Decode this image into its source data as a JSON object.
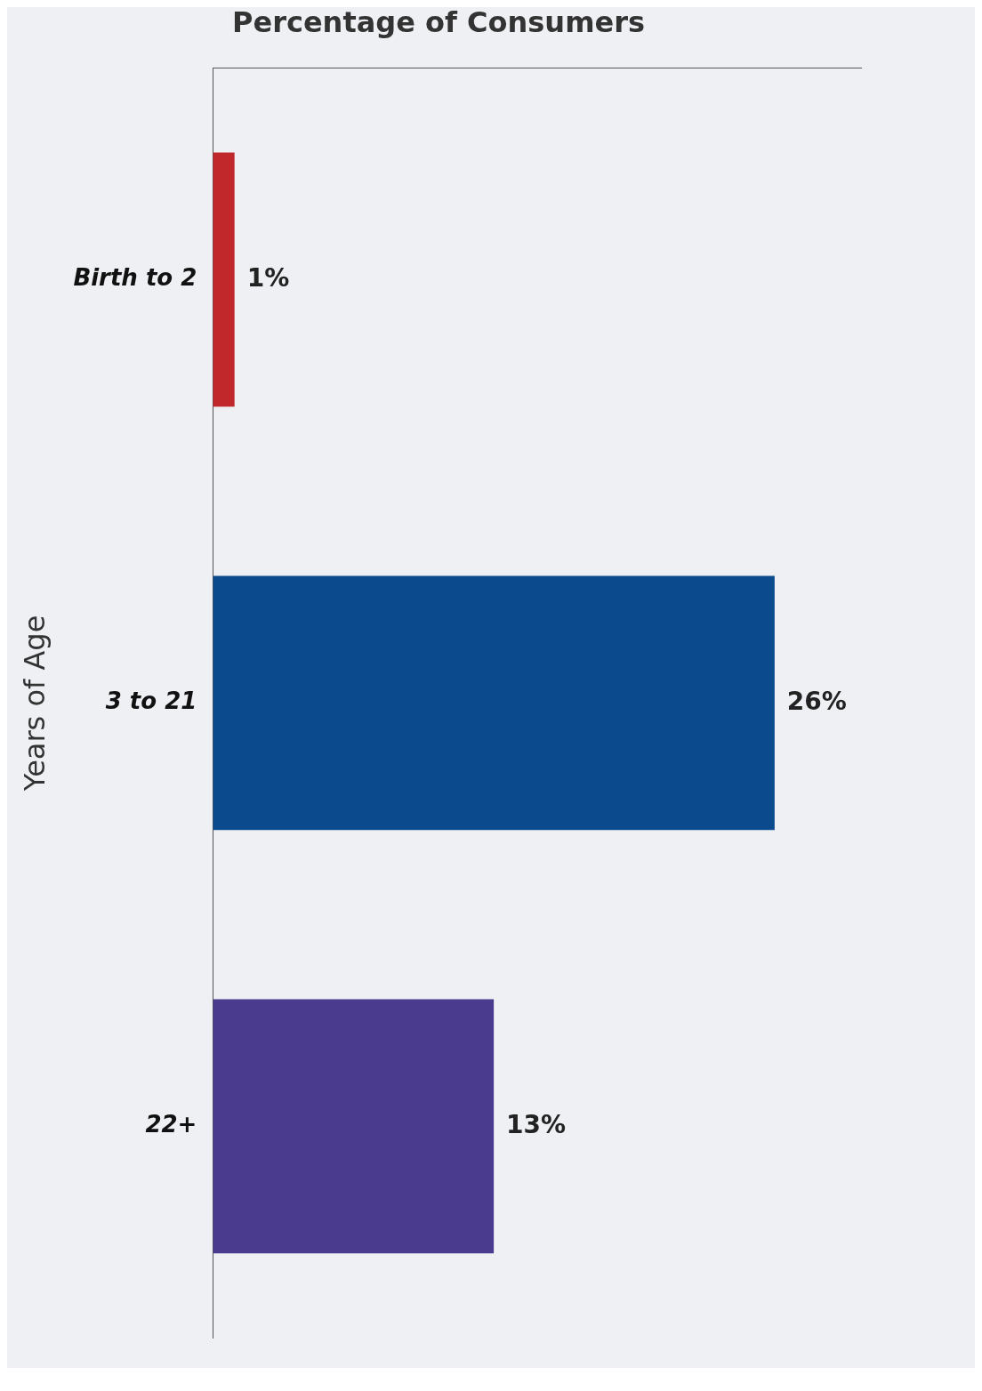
{
  "chart_data": {
    "type": "bar",
    "orientation": "horizontal",
    "title": "Percentage of Consumers",
    "ylabel": "Years of Age",
    "categories": [
      "Birth to 2",
      "3 to 21",
      "22+"
    ],
    "values": [
      1,
      26,
      13
    ],
    "colors": [
      "#c0282c",
      "#0b4a8c",
      "#4b3b8e"
    ],
    "value_labels": [
      "1%",
      "26%",
      "13%"
    ],
    "grid": false,
    "legend": false,
    "tick_labels": "y"
  }
}
